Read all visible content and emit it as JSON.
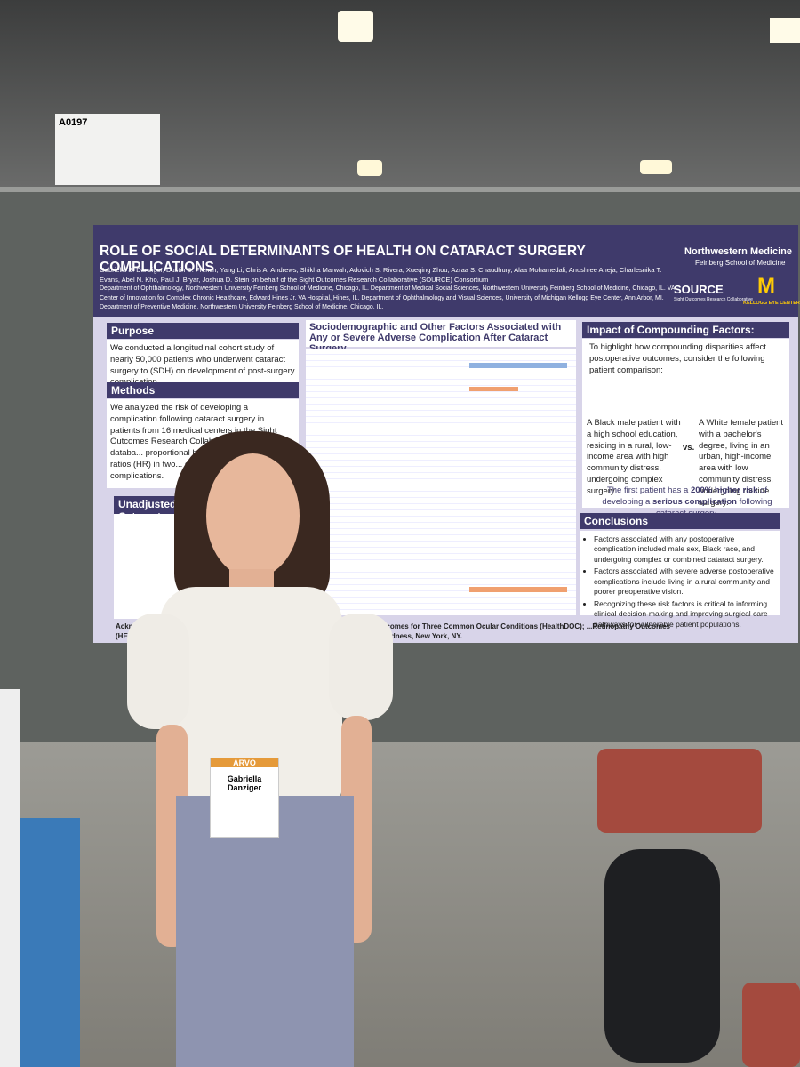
{
  "board_number": "A0197",
  "poster": {
    "title": "ROLE OF SOCIAL DETERMINANTS OF HEALTH ON CATARACT SURGERY COMPLICATIONS",
    "authors": "Gabriella S. Danziger, Dustin D. French, Yang Li, Chris A. Andrews, Shikha Marwah, Adovich S. Rivera, Xueqing Zhou, Azraa S. Chaudhury, Alaa Mohamedali, Anushree Aneja, Charlesnika T. Evans, Abel N. Kho, Paul J. Bryar, Joshua D. Stein on behalf of the Sight Outcomes Research Collaborative (SOURCE) Consortium",
    "affiliations": "Department of Ophthalmology, Northwestern University Feinberg School of Medicine, Chicago, IL. Department of Medical Social Sciences, Northwestern University Feinberg School of Medicine, Chicago, IL. VA Center of Innovation for Complex Chronic Healthcare, Edward Hines Jr. VA Hospital, Hines, IL. Department of Ophthalmology and Visual Sciences, University of Michigan Kellogg Eye Center, Ann Arbor, MI. Department of Preventive Medicine, Northwestern University Feinberg School of Medicine, Chicago, IL.",
    "logos": [
      "Northwestern Medicine",
      "Feinberg School of Medicine",
      "SOURCE",
      "Sight Outcomes Research Collaborative",
      "KELLOGG EYE CENTER"
    ],
    "purpose": {
      "heading": "Purpose",
      "text": "We conducted a longitudinal cohort study of nearly 50,000 patients who underwent cataract surgery to (SDH) on development of post-surgery complication."
    },
    "methods": {
      "heading": "Methods",
      "text": "We analyzed the risk of developing a complication following cataract surgery in patients from 16 medical centers in the Sight Outcomes Research Collaborative (SOURCE) databa... proportional hazard models... hazard ratios (HR) in two... complication and one for... complications."
    },
    "unadjusted_heading": "Unadjusted Cataract",
    "table_title": "Sociodemographic and Other Factors Associated with Any or Severe Adverse Complication After Cataract Surgery",
    "impact": {
      "heading": "Impact of Compounding Factors:",
      "intro": "To highlight how compounding disparities affect postoperative outcomes, consider the following patient comparison:",
      "patient_a": "A Black male patient with a high school education, residing in a rural, low-income area with high community distress, undergoing complex surgery.",
      "versus": "vs.",
      "patient_b": "A White female patient with a bachelor's degree, living in an urban, high-income area with low community distress, undergoing routine surgery.",
      "summary": [
        "The first patient has a ",
        "200% higher risk",
        " of developing a ",
        "serious complication",
        " following cataract surgery."
      ]
    },
    "conclusions": {
      "heading": "Conclusions",
      "items": [
        "Factors associated with any postoperative complication included male sex, Black race, and undergoing complex or combined cataract surgery.",
        "Factors associated with severe adverse postoperative complications include living in a rural community and poorer preoperative vision.",
        "Recognizing these risk factors is critical to informing clinical decision-making and improving surgical care pathways for vulnerable patient populations."
      ]
    },
    "acknowledgment": "Acknowled... 1R01EY034444-02 Health Disparities in Utilization, Quality, and Outcomes for Three Common Ocular Conditions (HealthDOC); ...Retinopathy Outcomes (HEAL-DR) and supported by an unrestricted grant from Research to Prevent Blindness, New York, NY."
  },
  "badge": {
    "event": "ARVO",
    "name": "Gabriella Danziger"
  }
}
